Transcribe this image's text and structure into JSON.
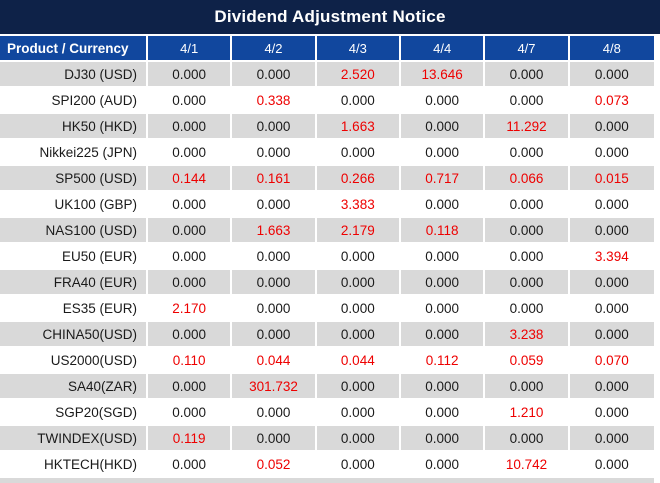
{
  "title": "Dividend Adjustment Notice",
  "columns": [
    "Product / Currency",
    "4/1",
    "4/2",
    "4/3",
    "4/4",
    "4/7",
    "4/8"
  ],
  "rows": [
    {
      "product": "DJ30 (USD)",
      "values": [
        "0.000",
        "0.000",
        "2.520",
        "13.646",
        "0.000",
        "0.000"
      ],
      "red": [
        false,
        false,
        true,
        true,
        false,
        false
      ]
    },
    {
      "product": "SPI200 (AUD)",
      "values": [
        "0.000",
        "0.338",
        "0.000",
        "0.000",
        "0.000",
        "0.073"
      ],
      "red": [
        false,
        true,
        false,
        false,
        false,
        true
      ]
    },
    {
      "product": "HK50 (HKD)",
      "values": [
        "0.000",
        "0.000",
        "1.663",
        "0.000",
        "11.292",
        "0.000"
      ],
      "red": [
        false,
        false,
        true,
        false,
        true,
        false
      ]
    },
    {
      "product": "Nikkei225 (JPN)",
      "values": [
        "0.000",
        "0.000",
        "0.000",
        "0.000",
        "0.000",
        "0.000"
      ],
      "red": [
        false,
        false,
        false,
        false,
        false,
        false
      ]
    },
    {
      "product": "SP500 (USD)",
      "values": [
        "0.144",
        "0.161",
        "0.266",
        "0.717",
        "0.066",
        "0.015"
      ],
      "red": [
        true,
        true,
        true,
        true,
        true,
        true
      ]
    },
    {
      "product": "UK100 (GBP)",
      "values": [
        "0.000",
        "0.000",
        "3.383",
        "0.000",
        "0.000",
        "0.000"
      ],
      "red": [
        false,
        false,
        true,
        false,
        false,
        false
      ]
    },
    {
      "product": "NAS100 (USD)",
      "values": [
        "0.000",
        "1.663",
        "2.179",
        "0.118",
        "0.000",
        "0.000"
      ],
      "red": [
        false,
        true,
        true,
        true,
        false,
        false
      ]
    },
    {
      "product": "EU50 (EUR)",
      "values": [
        "0.000",
        "0.000",
        "0.000",
        "0.000",
        "0.000",
        "3.394"
      ],
      "red": [
        false,
        false,
        false,
        false,
        false,
        true
      ]
    },
    {
      "product": "FRA40 (EUR)",
      "values": [
        "0.000",
        "0.000",
        "0.000",
        "0.000",
        "0.000",
        "0.000"
      ],
      "red": [
        false,
        false,
        false,
        false,
        false,
        false
      ]
    },
    {
      "product": "ES35 (EUR)",
      "values": [
        "2.170",
        "0.000",
        "0.000",
        "0.000",
        "0.000",
        "0.000"
      ],
      "red": [
        true,
        false,
        false,
        false,
        false,
        false
      ]
    },
    {
      "product": "CHINA50(USD)",
      "values": [
        "0.000",
        "0.000",
        "0.000",
        "0.000",
        "3.238",
        "0.000"
      ],
      "red": [
        false,
        false,
        false,
        false,
        true,
        false
      ]
    },
    {
      "product": "US2000(USD)",
      "values": [
        "0.110",
        "0.044",
        "0.044",
        "0.112",
        "0.059",
        "0.070"
      ],
      "red": [
        true,
        true,
        true,
        true,
        true,
        true
      ]
    },
    {
      "product": "SA40(ZAR)",
      "values": [
        "0.000",
        "301.732",
        "0.000",
        "0.000",
        "0.000",
        "0.000"
      ],
      "red": [
        false,
        true,
        false,
        false,
        false,
        false
      ]
    },
    {
      "product": "SGP20(SGD)",
      "values": [
        "0.000",
        "0.000",
        "0.000",
        "0.000",
        "1.210",
        "0.000"
      ],
      "red": [
        false,
        false,
        false,
        false,
        true,
        false
      ]
    },
    {
      "product": "TWINDEX(USD)",
      "values": [
        "0.119",
        "0.000",
        "0.000",
        "0.000",
        "0.000",
        "0.000"
      ],
      "red": [
        true,
        false,
        false,
        false,
        false,
        false
      ]
    },
    {
      "product": "HKTECH(HKD)",
      "values": [
        "0.000",
        "0.052",
        "0.000",
        "0.000",
        "10.742",
        "0.000"
      ],
      "red": [
        false,
        true,
        false,
        false,
        true,
        false
      ]
    }
  ],
  "colors": {
    "title_bg": "#0e2248",
    "header_bg": "#11479e",
    "row_alt_bg": "#d9d9d9",
    "row_bg": "#ffffff",
    "negative_red": "#ee0000",
    "value_text": "#1a1a1a",
    "header_text": "#ffffff"
  }
}
